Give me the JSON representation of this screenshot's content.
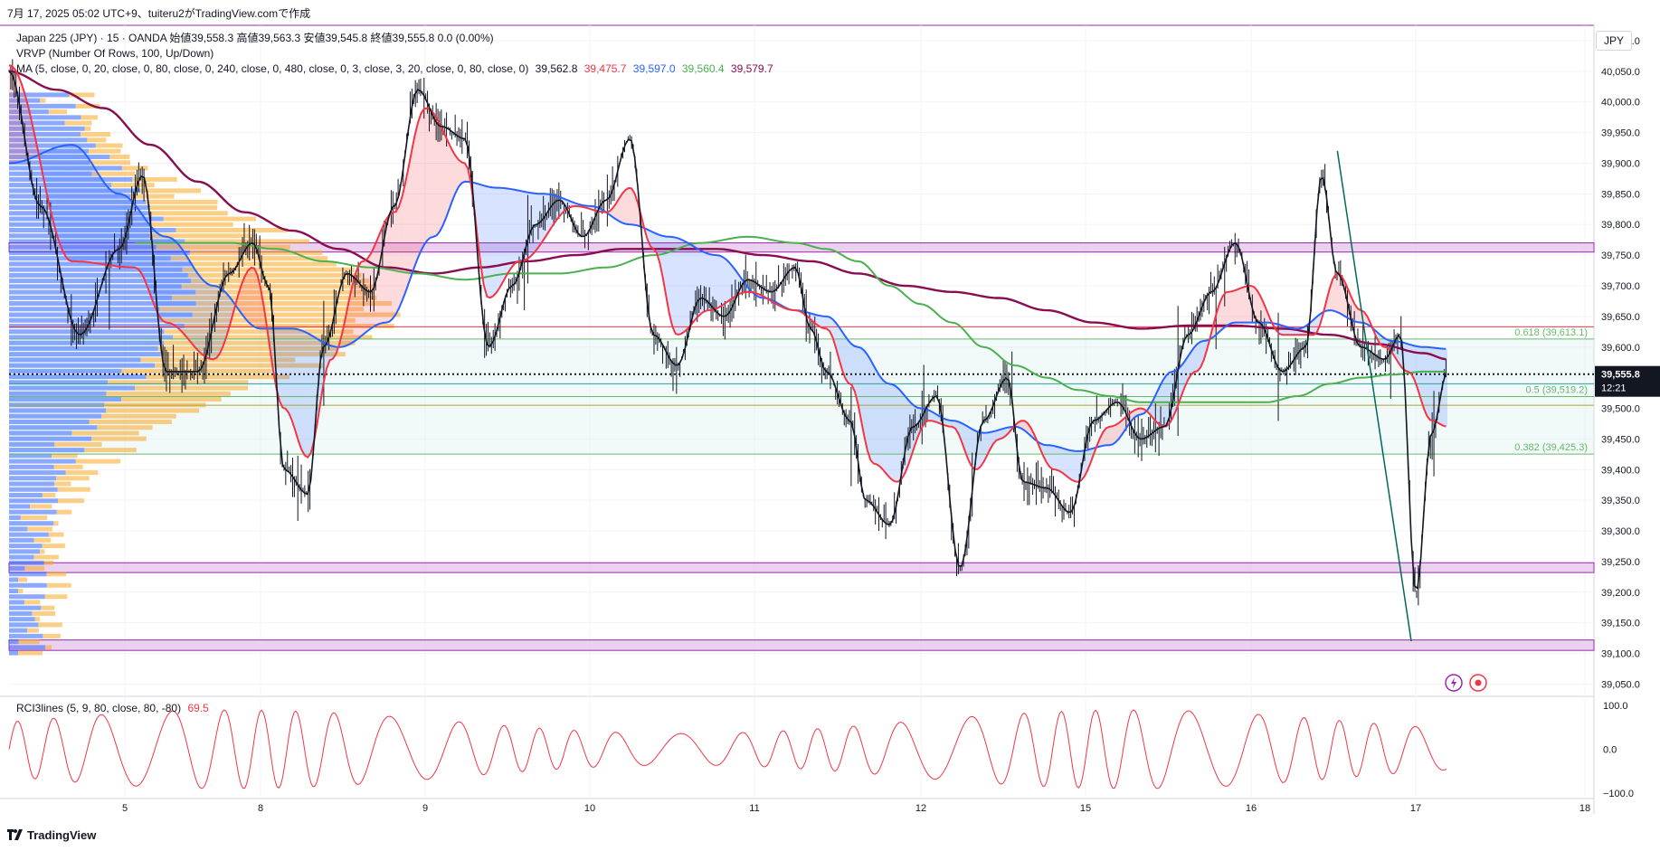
{
  "header": {
    "caption": "7月 17, 2025 05:02 UTC+9、tuiteru2がTradingView.comで作成",
    "symbol_line": "Japan 225 (JPY) · 15 · OANDA  始値39,558.3  高値39,563.3  安値39,545.8  終値39,555.8  0.0 (0.00%)",
    "vrvp_line": "VRVP (Number Of Rows, 100, Up/Down)",
    "ma_label": "MA (5, close, 0, 20, close, 0, 80, close, 0, 240, close, 0, 480, close, 0, 3, close, 3, 20, close, 0, 80, close, 0)",
    "ma_values": [
      "39,562.8",
      "39,475.7",
      "39,597.0",
      "39,560.4",
      "39,579.7"
    ],
    "currency": "JPY"
  },
  "colors": {
    "ma5": "#131722",
    "ma20": "#f23645",
    "ma80": "#2962ff",
    "ma240": "#4caf50",
    "ma480": "#880e4f",
    "vrvp_up": "#2962ff",
    "vrvp_down": "#f9a825",
    "zone": "#e1bee7",
    "rci": "#f23645"
  },
  "chart_data": {
    "type": "line",
    "series_kind": "candlestick price chart (Japan 225, 15m)",
    "x_ticks": [
      "5",
      "8",
      "9",
      "10",
      "11",
      "12",
      "15",
      "16",
      "17",
      "18"
    ],
    "y_ticks": [
      "40,100.0",
      "40,050.0",
      "40,000.0",
      "39,950.0",
      "39,900.0",
      "39,850.0",
      "39,800.0",
      "39,750.0",
      "39,700.0",
      "39,650.0",
      "39,600.0",
      "39,550.0",
      "39,500.0",
      "39,450.0",
      "39,400.0",
      "39,350.0",
      "39,300.0",
      "39,250.0",
      "39,200.0",
      "39,150.0",
      "39,100.0",
      "39,050.0"
    ],
    "y_range": [
      39030,
      40125
    ],
    "last_price": "39,555.8",
    "countdown": "12:21",
    "fib_labels": [
      "0.618 (39,613.1)",
      "0.5 (39,519.2)",
      "0.382 (39,425.3)"
    ],
    "fib_levels": [
      39613.1,
      39519.2,
      39425.3
    ],
    "horizontal_levels": [
      39633,
      39540,
      39505
    ],
    "zones": [
      [
        39755,
        39770
      ],
      [
        39232,
        39248
      ],
      [
        39105,
        39122
      ]
    ],
    "moving_averages": [
      {
        "period": 5,
        "color": "#131722"
      },
      {
        "period": 20,
        "color": "#f23645"
      },
      {
        "period": 80,
        "color": "#2962ff"
      },
      {
        "period": 240,
        "color": "#4caf50"
      },
      {
        "period": 480,
        "color": "#880e4f"
      }
    ],
    "anchors": {
      "ma5": [
        [
          0,
          40050
        ],
        [
          0.02,
          39830
        ],
        [
          0.045,
          39620
        ],
        [
          0.07,
          39760
        ],
        [
          0.085,
          39880
        ],
        [
          0.1,
          39560
        ],
        [
          0.12,
          39560
        ],
        [
          0.14,
          39720
        ],
        [
          0.155,
          39770
        ],
        [
          0.165,
          39700
        ],
        [
          0.175,
          39400
        ],
        [
          0.19,
          39360
        ],
        [
          0.2,
          39600
        ],
        [
          0.215,
          39720
        ],
        [
          0.23,
          39690
        ],
        [
          0.245,
          39830
        ],
        [
          0.26,
          40020
        ],
        [
          0.275,
          39960
        ],
        [
          0.29,
          39940
        ],
        [
          0.305,
          39600
        ],
        [
          0.32,
          39700
        ],
        [
          0.335,
          39800
        ],
        [
          0.35,
          39840
        ],
        [
          0.365,
          39780
        ],
        [
          0.38,
          39840
        ],
        [
          0.395,
          39940
        ],
        [
          0.41,
          39620
        ],
        [
          0.425,
          39570
        ],
        [
          0.44,
          39680
        ],
        [
          0.455,
          39650
        ],
        [
          0.47,
          39710
        ],
        [
          0.485,
          39690
        ],
        [
          0.5,
          39730
        ],
        [
          0.51,
          39630
        ],
        [
          0.52,
          39560
        ],
        [
          0.535,
          39480
        ],
        [
          0.545,
          39350
        ],
        [
          0.56,
          39310
        ],
        [
          0.575,
          39470
        ],
        [
          0.59,
          39520
        ],
        [
          0.605,
          39240
        ],
        [
          0.62,
          39480
        ],
        [
          0.635,
          39550
        ],
        [
          0.645,
          39380
        ],
        [
          0.66,
          39370
        ],
        [
          0.675,
          39330
        ],
        [
          0.69,
          39480
        ],
        [
          0.705,
          39510
        ],
        [
          0.72,
          39450
        ],
        [
          0.735,
          39470
        ],
        [
          0.75,
          39620
        ],
        [
          0.765,
          39690
        ],
        [
          0.78,
          39770
        ],
        [
          0.795,
          39640
        ],
        [
          0.81,
          39560
        ],
        [
          0.825,
          39600
        ],
        [
          0.835,
          39880
        ],
        [
          0.845,
          39720
        ],
        [
          0.86,
          39600
        ],
        [
          0.875,
          39580
        ],
        [
          0.885,
          39620
        ],
        [
          0.895,
          39200
        ],
        [
          0.905,
          39460
        ],
        [
          0.915,
          39560
        ]
      ],
      "ma20": [
        [
          0,
          40060
        ],
        [
          0.04,
          39740
        ],
        [
          0.08,
          39730
        ],
        [
          0.1,
          39640
        ],
        [
          0.13,
          39580
        ],
        [
          0.155,
          39730
        ],
        [
          0.175,
          39500
        ],
        [
          0.19,
          39420
        ],
        [
          0.205,
          39580
        ],
        [
          0.225,
          39740
        ],
        [
          0.245,
          39820
        ],
        [
          0.265,
          39990
        ],
        [
          0.29,
          39900
        ],
        [
          0.305,
          39680
        ],
        [
          0.325,
          39740
        ],
        [
          0.36,
          39830
        ],
        [
          0.38,
          39820
        ],
        [
          0.395,
          39860
        ],
        [
          0.41,
          39760
        ],
        [
          0.425,
          39620
        ],
        [
          0.445,
          39660
        ],
        [
          0.47,
          39690
        ],
        [
          0.5,
          39660
        ],
        [
          0.52,
          39630
        ],
        [
          0.535,
          39540
        ],
        [
          0.55,
          39410
        ],
        [
          0.565,
          39380
        ],
        [
          0.585,
          39480
        ],
        [
          0.6,
          39470
        ],
        [
          0.615,
          39400
        ],
        [
          0.63,
          39450
        ],
        [
          0.645,
          39480
        ],
        [
          0.665,
          39400
        ],
        [
          0.68,
          39380
        ],
        [
          0.7,
          39470
        ],
        [
          0.72,
          39500
        ],
        [
          0.735,
          39470
        ],
        [
          0.755,
          39560
        ],
        [
          0.775,
          39690
        ],
        [
          0.79,
          39700
        ],
        [
          0.81,
          39620
        ],
        [
          0.83,
          39620
        ],
        [
          0.845,
          39720
        ],
        [
          0.86,
          39660
        ],
        [
          0.875,
          39600
        ],
        [
          0.89,
          39560
        ],
        [
          0.905,
          39480
        ],
        [
          0.915,
          39470
        ]
      ],
      "ma80": [
        [
          0,
          39900
        ],
        [
          0.04,
          39930
        ],
        [
          0.07,
          39850
        ],
        [
          0.1,
          39780
        ],
        [
          0.13,
          39700
        ],
        [
          0.16,
          39630
        ],
        [
          0.18,
          39630
        ],
        [
          0.21,
          39600
        ],
        [
          0.24,
          39640
        ],
        [
          0.27,
          39780
        ],
        [
          0.29,
          39870
        ],
        [
          0.31,
          39860
        ],
        [
          0.34,
          39850
        ],
        [
          0.37,
          39830
        ],
        [
          0.395,
          39800
        ],
        [
          0.42,
          39780
        ],
        [
          0.45,
          39750
        ],
        [
          0.48,
          39680
        ],
        [
          0.5,
          39660
        ],
        [
          0.52,
          39650
        ],
        [
          0.54,
          39600
        ],
        [
          0.56,
          39540
        ],
        [
          0.58,
          39500
        ],
        [
          0.6,
          39480
        ],
        [
          0.62,
          39460
        ],
        [
          0.64,
          39470
        ],
        [
          0.66,
          39440
        ],
        [
          0.68,
          39430
        ],
        [
          0.7,
          39440
        ],
        [
          0.72,
          39490
        ],
        [
          0.74,
          39560
        ],
        [
          0.76,
          39610
        ],
        [
          0.78,
          39640
        ],
        [
          0.8,
          39640
        ],
        [
          0.82,
          39630
        ],
        [
          0.84,
          39660
        ],
        [
          0.86,
          39640
        ],
        [
          0.88,
          39610
        ],
        [
          0.9,
          39600
        ],
        [
          0.915,
          39597
        ]
      ],
      "ma240": [
        [
          0.08,
          39770
        ],
        [
          0.11,
          39770
        ],
        [
          0.14,
          39770
        ],
        [
          0.17,
          39760
        ],
        [
          0.2,
          39740
        ],
        [
          0.23,
          39730
        ],
        [
          0.26,
          39720
        ],
        [
          0.29,
          39710
        ],
        [
          0.32,
          39720
        ],
        [
          0.35,
          39720
        ],
        [
          0.38,
          39730
        ],
        [
          0.41,
          39750
        ],
        [
          0.44,
          39770
        ],
        [
          0.47,
          39780
        ],
        [
          0.5,
          39770
        ],
        [
          0.52,
          39760
        ],
        [
          0.54,
          39740
        ],
        [
          0.56,
          39700
        ],
        [
          0.58,
          39670
        ],
        [
          0.6,
          39640
        ],
        [
          0.62,
          39600
        ],
        [
          0.64,
          39570
        ],
        [
          0.66,
          39550
        ],
        [
          0.68,
          39530
        ],
        [
          0.7,
          39520
        ],
        [
          0.72,
          39510
        ],
        [
          0.74,
          39510
        ],
        [
          0.76,
          39510
        ],
        [
          0.78,
          39510
        ],
        [
          0.8,
          39510
        ],
        [
          0.82,
          39520
        ],
        [
          0.84,
          39540
        ],
        [
          0.86,
          39550
        ],
        [
          0.88,
          39555
        ],
        [
          0.9,
          39560
        ],
        [
          0.915,
          39560
        ]
      ],
      "ma480": [
        [
          0,
          40050
        ],
        [
          0.03,
          40020
        ],
        [
          0.06,
          39990
        ],
        [
          0.09,
          39930
        ],
        [
          0.12,
          39870
        ],
        [
          0.15,
          39820
        ],
        [
          0.18,
          39790
        ],
        [
          0.21,
          39760
        ],
        [
          0.24,
          39730
        ],
        [
          0.27,
          39720
        ],
        [
          0.3,
          39730
        ],
        [
          0.33,
          39740
        ],
        [
          0.36,
          39750
        ],
        [
          0.39,
          39760
        ],
        [
          0.42,
          39760
        ],
        [
          0.45,
          39760
        ],
        [
          0.48,
          39750
        ],
        [
          0.51,
          39740
        ],
        [
          0.54,
          39720
        ],
        [
          0.57,
          39700
        ],
        [
          0.6,
          39690
        ],
        [
          0.63,
          39680
        ],
        [
          0.66,
          39660
        ],
        [
          0.69,
          39640
        ],
        [
          0.72,
          39630
        ],
        [
          0.75,
          39635
        ],
        [
          0.78,
          39635
        ],
        [
          0.81,
          39630
        ],
        [
          0.84,
          39620
        ],
        [
          0.87,
          39605
        ],
        [
          0.9,
          39590
        ],
        [
          0.915,
          39580
        ]
      ],
      "diag": [
        [
          0.845,
          39920
        ],
        [
          0.892,
          39120
        ]
      ]
    },
    "vrvp_profile_note": "volume profile bars drawn from left edge, mixed up/down"
  },
  "rci": {
    "label": "RCI3lines (5, 9, 80, close, 80, -80)",
    "value": "69.5",
    "y_ticks": [
      "100.0",
      "0.0",
      "−100.0"
    ]
  },
  "brand": "TradingView"
}
